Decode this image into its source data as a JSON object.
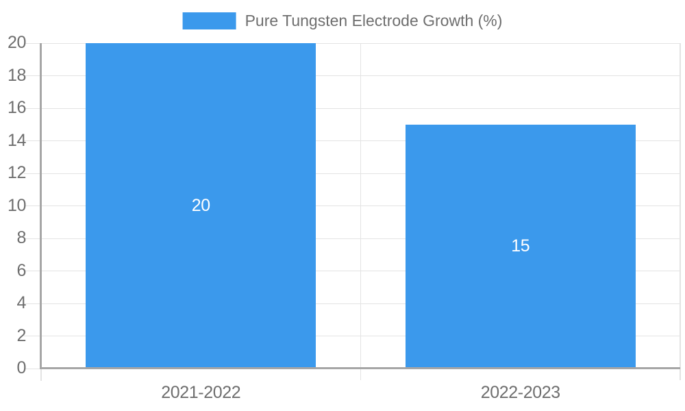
{
  "legend": {
    "label": "Pure Tungsten Electrode Growth (%)"
  },
  "chart_data": {
    "type": "bar",
    "title": "Pure Tungsten Electrode Growth (%)",
    "categories": [
      "2021-2022",
      "2022-2023"
    ],
    "values": [
      20,
      15
    ],
    "value_labels": [
      "20",
      "15"
    ],
    "xlabel": "",
    "ylabel": "",
    "ylim": [
      0,
      20
    ],
    "yticks": [
      0,
      2,
      4,
      6,
      8,
      10,
      12,
      14,
      16,
      18,
      20
    ],
    "grid": true,
    "legend_position": "top-center",
    "value_labels_position": "inside-center"
  },
  "theme": {
    "background_color": "#ffffff",
    "bar_color": "#3b99ec",
    "gridline_color": "#e3e3e3",
    "axis_line_color": "#a6a6a6",
    "axis_text_color": "#6e6e6e",
    "value_label_color": "#ffffff"
  }
}
